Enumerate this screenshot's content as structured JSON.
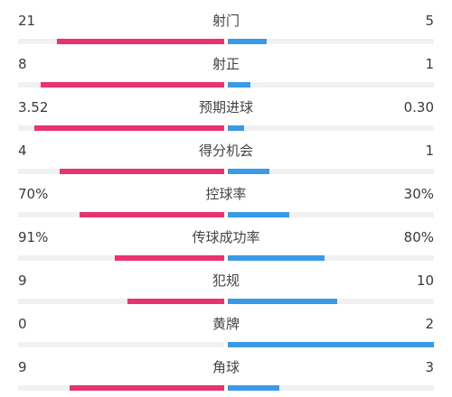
{
  "colors": {
    "home": "#e8336e",
    "away": "#3b9ae8",
    "track": "#f1f1f3"
  },
  "stats": [
    {
      "label": "射门",
      "home": "21",
      "away": "5",
      "home_share": 0.81,
      "away_share": 0.19
    },
    {
      "label": "射正",
      "home": "8",
      "away": "1",
      "home_share": 0.89,
      "away_share": 0.11
    },
    {
      "label": "预期进球",
      "home": "3.52",
      "away": "0.30",
      "home_share": 0.92,
      "away_share": 0.08
    },
    {
      "label": "得分机会",
      "home": "4",
      "away": "1",
      "home_share": 0.8,
      "away_share": 0.2
    },
    {
      "label": "控球率",
      "home": "70%",
      "away": "30%",
      "home_share": 0.7,
      "away_share": 0.3
    },
    {
      "label": "传球成功率",
      "home": "91%",
      "away": "80%",
      "home_share": 0.53,
      "away_share": 0.47
    },
    {
      "label": "犯规",
      "home": "9",
      "away": "10",
      "home_share": 0.47,
      "away_share": 0.53
    },
    {
      "label": "黄牌",
      "home": "0",
      "away": "2",
      "home_share": 0.0,
      "away_share": 1.0
    },
    {
      "label": "角球",
      "home": "9",
      "away": "3",
      "home_share": 0.75,
      "away_share": 0.25
    }
  ]
}
